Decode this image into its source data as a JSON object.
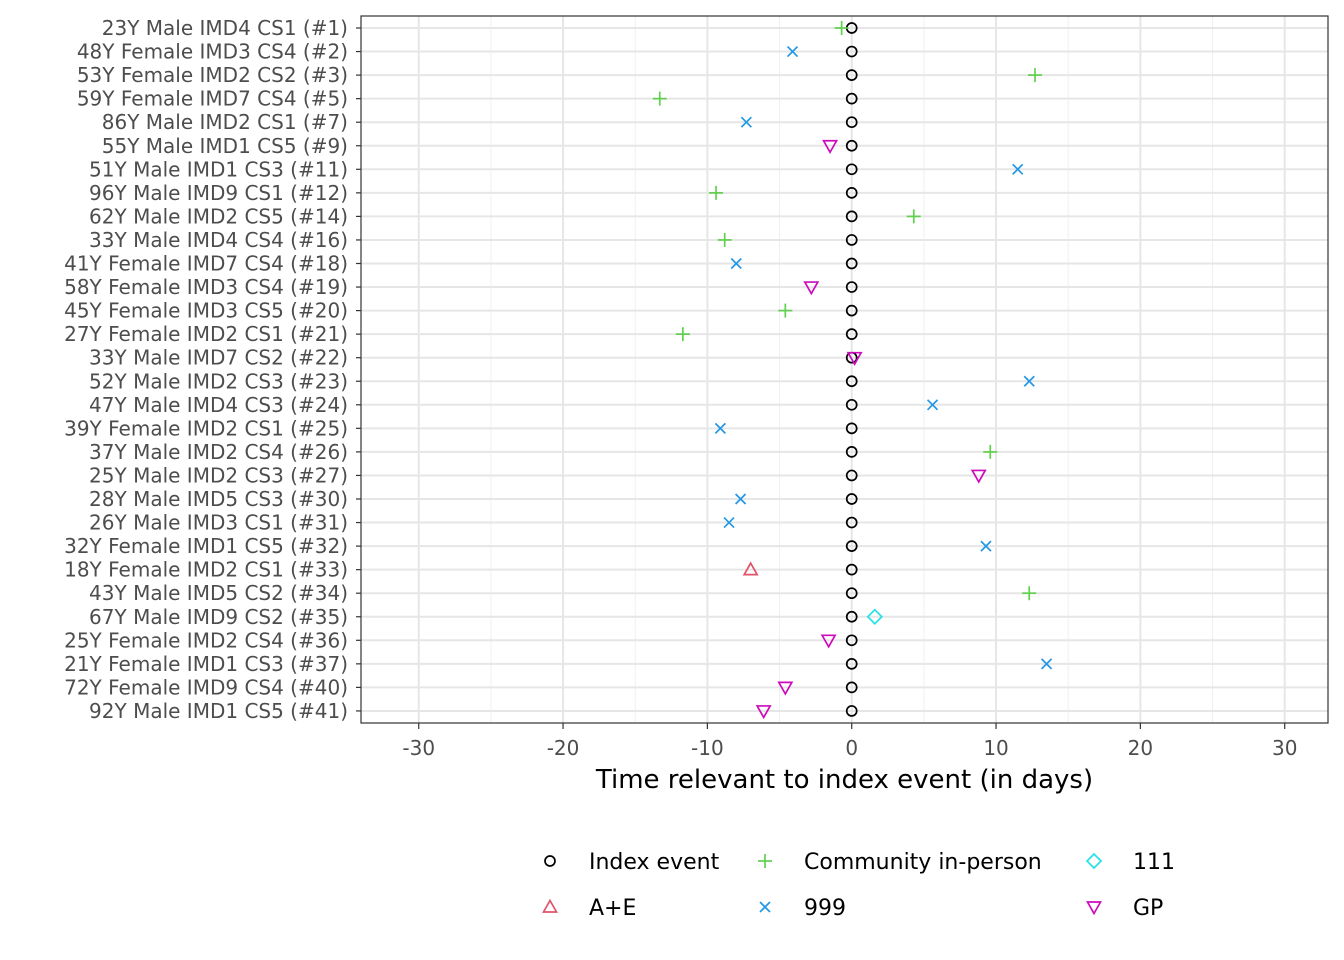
{
  "chart_data": {
    "type": "scatter",
    "xlabel": "Time relevant to index event (in days)",
    "xlim": [
      -34,
      33
    ],
    "xticks": [
      -30,
      -20,
      -10,
      0,
      10,
      20,
      30
    ],
    "xtick_labels": [
      "-30",
      "-20",
      "-10",
      "0",
      "10",
      "20",
      "30"
    ],
    "grid": true,
    "legend_position": "bottom",
    "categories": [
      "23Y Male IMD4 CS1 (#1)",
      "48Y Female IMD3 CS4 (#2)",
      "53Y Female IMD2 CS2 (#3)",
      "59Y Female IMD7 CS4 (#5)",
      "86Y Male IMD2 CS1 (#7)",
      "55Y Male IMD1 CS5 (#9)",
      "51Y Male IMD1 CS3 (#11)",
      "96Y Male IMD9 CS1 (#12)",
      "62Y Male IMD2 CS5 (#14)",
      "33Y Male IMD4 CS4 (#16)",
      "41Y Female IMD7 CS4 (#18)",
      "58Y Female IMD3 CS4 (#19)",
      "45Y Female IMD3 CS5 (#20)",
      "27Y Female IMD2 CS1 (#21)",
      "33Y Male IMD7 CS2 (#22)",
      "52Y Male IMD2 CS3 (#23)",
      "47Y Male IMD4 CS3 (#24)",
      "39Y Female IMD2 CS1 (#25)",
      "37Y Male IMD2 CS4 (#26)",
      "25Y Male IMD2 CS3 (#27)",
      "28Y Male IMD5 CS3 (#30)",
      "26Y Male IMD3 CS1 (#31)",
      "32Y Female IMD1 CS5 (#32)",
      "18Y Female IMD2 CS1 (#33)",
      "43Y Male IMD5 CS2 (#34)",
      "67Y Male IMD9 CS2 (#35)",
      "25Y Female IMD2 CS4 (#36)",
      "21Y Female IMD1 CS3 (#37)",
      "72Y Female IMD9 CS4 (#40)",
      "92Y Male IMD1 CS5 (#41)"
    ],
    "series": [
      {
        "name": "Index event",
        "shape": "circle",
        "color": "#000000",
        "points": [
          [
            0,
            0
          ],
          [
            1,
            0
          ],
          [
            2,
            0
          ],
          [
            3,
            0
          ],
          [
            4,
            0
          ],
          [
            5,
            0
          ],
          [
            6,
            0
          ],
          [
            7,
            0
          ],
          [
            8,
            0
          ],
          [
            9,
            0
          ],
          [
            10,
            0
          ],
          [
            11,
            0
          ],
          [
            12,
            0
          ],
          [
            13,
            0
          ],
          [
            14,
            0
          ],
          [
            15,
            0
          ],
          [
            16,
            0
          ],
          [
            17,
            0
          ],
          [
            18,
            0
          ],
          [
            19,
            0
          ],
          [
            20,
            0
          ],
          [
            21,
            0
          ],
          [
            22,
            0
          ],
          [
            23,
            0
          ],
          [
            24,
            0
          ],
          [
            25,
            0
          ],
          [
            26,
            0
          ],
          [
            27,
            0
          ],
          [
            28,
            0
          ],
          [
            29,
            0
          ]
        ]
      },
      {
        "name": "A+E",
        "shape": "triangle-up",
        "color": "#df536b",
        "points": [
          [
            23,
            -7.0
          ]
        ]
      },
      {
        "name": "Community in-person",
        "shape": "plus",
        "color": "#61d04f",
        "points": [
          [
            0,
            -0.7
          ],
          [
            2,
            12.7
          ],
          [
            3,
            -13.3
          ],
          [
            7,
            -9.4
          ],
          [
            8,
            4.3
          ],
          [
            9,
            -8.8
          ],
          [
            12,
            -4.6
          ],
          [
            13,
            -11.7
          ],
          [
            18,
            9.6
          ],
          [
            24,
            12.3
          ]
        ]
      },
      {
        "name": "999",
        "shape": "x",
        "color": "#2297e6",
        "points": [
          [
            1,
            -4.1
          ],
          [
            4,
            -7.3
          ],
          [
            6,
            11.5
          ],
          [
            10,
            -8.0
          ],
          [
            15,
            12.3
          ],
          [
            16,
            5.6
          ],
          [
            17,
            -9.1
          ],
          [
            20,
            -7.7
          ],
          [
            21,
            -8.5
          ],
          [
            22,
            9.3
          ],
          [
            27,
            13.5
          ]
        ]
      },
      {
        "name": "111",
        "shape": "diamond",
        "color": "#28e2e5",
        "points": [
          [
            25,
            1.6
          ]
        ]
      },
      {
        "name": "GP",
        "shape": "triangle-down",
        "color": "#cd0bbc",
        "points": [
          [
            5,
            -1.5
          ],
          [
            11,
            -2.8
          ],
          [
            14,
            0.2
          ],
          [
            19,
            8.8
          ],
          [
            26,
            -1.6
          ],
          [
            28,
            -4.6
          ],
          [
            29,
            -6.1
          ]
        ]
      }
    ]
  }
}
